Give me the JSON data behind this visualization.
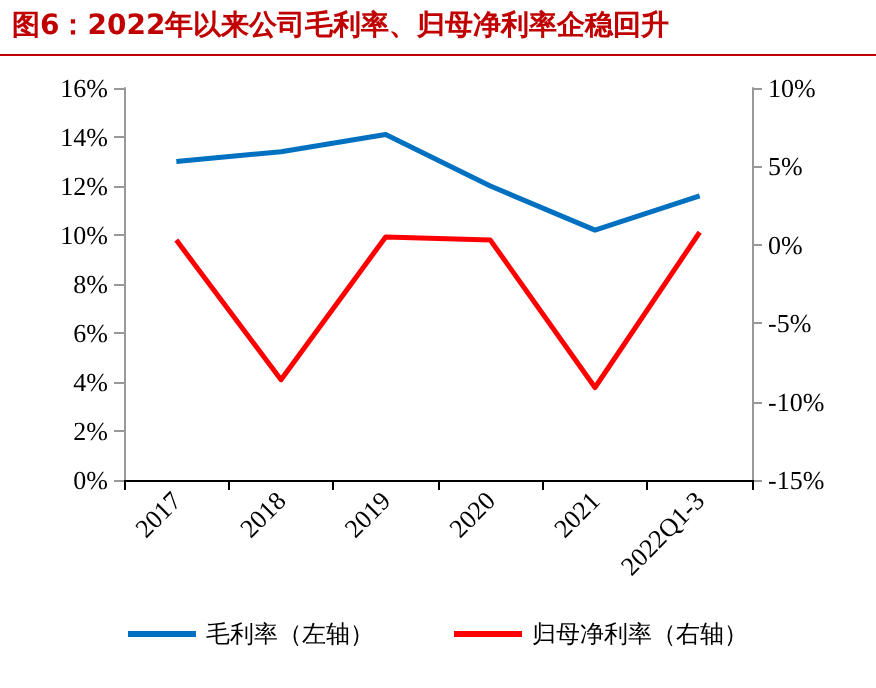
{
  "chart_data": {
    "type": "line",
    "title": "图6：2022年以来公司毛利率、归母净利率企稳回升",
    "categories": [
      "2017",
      "2018",
      "2019",
      "2020",
      "2021",
      "2022Q1-3"
    ],
    "series": [
      {
        "name": "毛利率（左轴）",
        "color": "#0070c0",
        "values": [
          13.0,
          13.4,
          14.1,
          12.0,
          10.2,
          11.6
        ]
      },
      {
        "name": "归母净利率（右轴）",
        "color": "#ff0000",
        "axis": "y2",
        "values": [
          0.3,
          -8.6,
          0.5,
          0.3,
          -9.1,
          0.8
        ]
      }
    ],
    "ylim": [
      0,
      16
    ],
    "yticks": [
      {
        "value": 0,
        "label": "0%"
      },
      {
        "value": 2,
        "label": "2%"
      },
      {
        "value": 4,
        "label": "4%"
      },
      {
        "value": 6,
        "label": "6%"
      },
      {
        "value": 8,
        "label": "8%"
      },
      {
        "value": 10,
        "label": "10%"
      },
      {
        "value": 12,
        "label": "12%"
      },
      {
        "value": 14,
        "label": "14%"
      },
      {
        "value": 16,
        "label": "16%"
      }
    ],
    "y2lim": [
      -15,
      10
    ],
    "y2ticks": [
      {
        "value": -15,
        "label": "-15%"
      },
      {
        "value": -10,
        "label": "-10%"
      },
      {
        "value": -5,
        "label": "-5%"
      },
      {
        "value": 0,
        "label": "0%"
      },
      {
        "value": 5,
        "label": "5%"
      },
      {
        "value": 10,
        "label": "10%"
      }
    ],
    "legend": "bottom",
    "grid": false,
    "marker": "none",
    "line_style": "solid"
  }
}
